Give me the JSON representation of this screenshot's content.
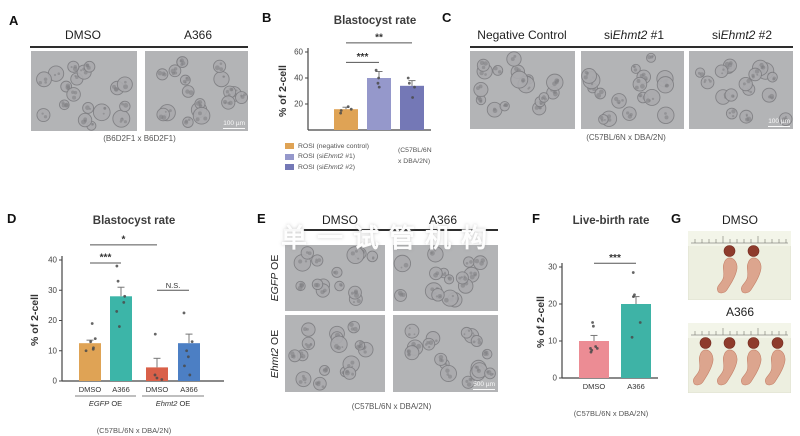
{
  "panels": {
    "A": {
      "label": "A",
      "headers": [
        "DMSO",
        "A366"
      ],
      "caption": "(B6D2F1 x B6D2F1)",
      "scale_bar": "100 µm"
    },
    "B": {
      "label": "B",
      "strain_note": [
        "(C57BL/6N",
        "x DBA/2N)"
      ]
    },
    "C": {
      "label": "C",
      "headers": [
        [
          {
            "t": "Negative Control"
          }
        ],
        [
          {
            "t": "si"
          },
          {
            "t": "Ehmt2",
            "italic": true
          },
          {
            "t": " #1"
          }
        ],
        [
          {
            "t": "si"
          },
          {
            "t": "Ehmt2",
            "italic": true
          },
          {
            "t": " #2"
          }
        ]
      ],
      "caption": "(C57BL/6N x DBA/2N)",
      "scale_bar": "100 µm"
    },
    "D": {
      "label": "D"
    },
    "E": {
      "label": "E",
      "col_headers": [
        "DMSO",
        "A366"
      ],
      "row_headers": [
        [
          {
            "t": "EGFP",
            "italic": true
          },
          {
            "t": " OE"
          }
        ],
        [
          {
            "t": "Ehmt2",
            "italic": true
          },
          {
            "t": " OE"
          }
        ]
      ],
      "caption": "(C57BL/6N x DBA/2N)",
      "scale_bar": "500 µm"
    },
    "F": {
      "label": "F"
    },
    "G": {
      "label": "G",
      "headers": [
        "DMSO",
        "A366"
      ],
      "pup_counts": [
        2,
        4
      ]
    }
  },
  "watermark": {
    "text": "单一试管机构",
    "color": "#ffffff"
  },
  "chart_data": [
    {
      "id": "B",
      "type": "bar",
      "title": "Blastocyst rate",
      "ylabel": "% of 2-cell",
      "ylim": [
        0,
        60
      ],
      "yticks": [
        20,
        40,
        60
      ],
      "categories": [
        "ROSI (negative control)",
        "ROSI (siEhmt2 #1)",
        "ROSI (siEhmt2 #2)"
      ],
      "values": [
        16,
        40,
        34
      ],
      "errors": [
        1.5,
        5,
        4
      ],
      "colors": [
        "#DFA355",
        "#9598CB",
        "#7478B6"
      ],
      "points": [
        [
          13,
          15,
          16,
          18
        ],
        [
          33,
          36,
          40,
          46
        ],
        [
          25,
          33,
          36,
          40
        ]
      ],
      "significance": [
        {
          "from": 0,
          "to": 1,
          "label": "***",
          "y": 52
        },
        {
          "from": 0,
          "to": 2,
          "label": "**",
          "y": 67
        }
      ],
      "legend": [
        {
          "color": "#DFA355",
          "segments": [
            {
              "t": "ROSI (negative control)"
            }
          ]
        },
        {
          "color": "#9598CB",
          "segments": [
            {
              "t": "ROSI (si"
            },
            {
              "t": "Ehmt2",
              "italic": true
            },
            {
              "t": " #1)"
            }
          ]
        },
        {
          "color": "#7478B6",
          "segments": [
            {
              "t": "ROSI (si"
            },
            {
              "t": "Ehmt2",
              "italic": true
            },
            {
              "t": " #2)"
            }
          ]
        }
      ],
      "caption": "(C57BL/6N x DBA/2N)",
      "legend_position": "bottom-left"
    },
    {
      "id": "D",
      "type": "bar",
      "title": "Blastocyst rate",
      "ylabel": "% of 2-cell",
      "ylim": [
        0,
        40
      ],
      "yticks": [
        0,
        10,
        20,
        30,
        40
      ],
      "categories": [
        "DMSO",
        "A366",
        "DMSO",
        "A366"
      ],
      "values": [
        12.5,
        28,
        4.5,
        12.5
      ],
      "errors": [
        1,
        3,
        3,
        3
      ],
      "colors": [
        "#DFA355",
        "#3CB5A8",
        "#D96049",
        "#4C7FC4"
      ],
      "points": [
        [
          10,
          10.5,
          11,
          13,
          14,
          19
        ],
        [
          18,
          23,
          26,
          28,
          33,
          38
        ],
        [
          0.5,
          1,
          2,
          15.5
        ],
        [
          2,
          5,
          8,
          10,
          13,
          22.5
        ]
      ],
      "significance": [
        {
          "from": 0,
          "to": 1,
          "label": "***",
          "y": 39
        },
        {
          "from": 0,
          "to": 2,
          "label": "*",
          "y": 45
        },
        {
          "from": 2,
          "to": 3,
          "label": "N.S.",
          "y": 30
        }
      ],
      "groups": [
        {
          "span": [
            0,
            1
          ],
          "segments": [
            {
              "t": "EGFP",
              "italic": true
            },
            {
              "t": " OE"
            }
          ]
        },
        {
          "span": [
            2,
            3
          ],
          "segments": [
            {
              "t": "Ehmt2",
              "italic": true
            },
            {
              "t": " OE"
            }
          ]
        }
      ],
      "caption": "(C57BL/6N x DBA/2N)"
    },
    {
      "id": "F",
      "type": "bar",
      "title": "Live-birth rate",
      "ylabel": "% of 2-cell",
      "ylim": [
        0,
        30
      ],
      "yticks": [
        0,
        10,
        20,
        30
      ],
      "categories": [
        "DMSO",
        "A366"
      ],
      "values": [
        10,
        20
      ],
      "errors": [
        1.5,
        2
      ],
      "colors": [
        "#EC8C94",
        "#3EB3A6"
      ],
      "points": [
        [
          7,
          7.5,
          8,
          8,
          8.5,
          14,
          15
        ],
        [
          11,
          15,
          22,
          22.5,
          28.5
        ]
      ],
      "significance": [
        {
          "from": 0,
          "to": 1,
          "label": "***",
          "y": 31
        }
      ],
      "caption": "(C57BL/6N x DBA/2N)"
    }
  ]
}
